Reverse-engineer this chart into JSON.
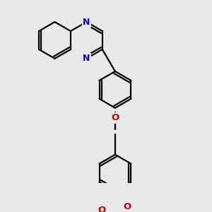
{
  "background_color": "#e8e8e8",
  "bond_color": "#000000",
  "nitrogen_color": "#0000cc",
  "oxygen_color": "#cc0000",
  "line_width": 1.6,
  "figsize": [
    3.0,
    3.0
  ],
  "dpi": 100,
  "xlim": [
    0,
    10
  ],
  "ylim": [
    0,
    10
  ]
}
